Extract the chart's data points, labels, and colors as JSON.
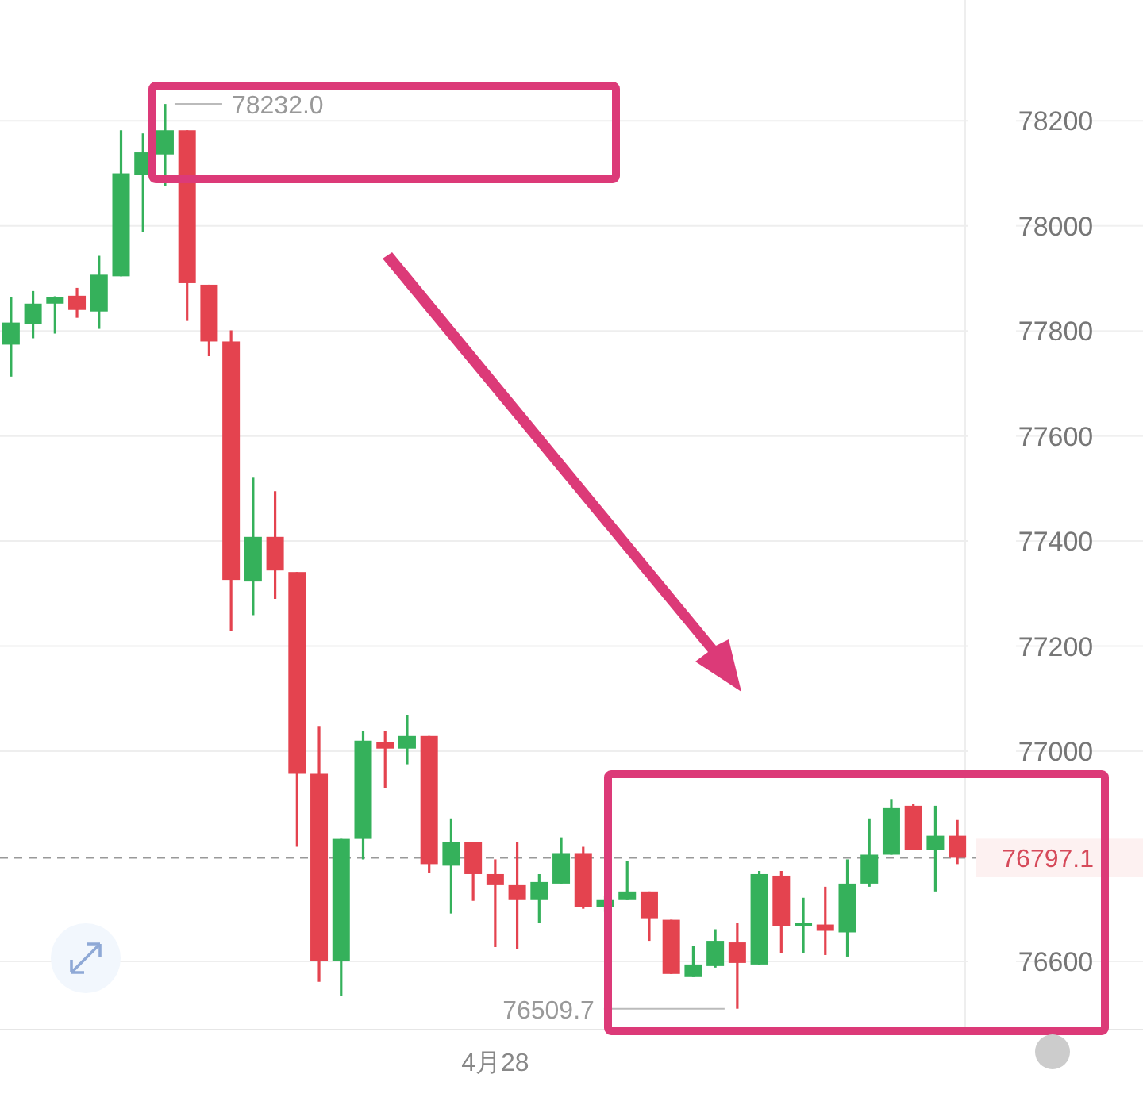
{
  "chart_data": {
    "type": "candlestick",
    "categories": [
      null,
      null,
      null,
      null,
      null,
      null,
      null,
      null,
      null,
      null,
      null,
      null,
      null,
      null,
      null,
      null,
      null,
      null,
      null,
      null,
      null,
      null,
      "4月28",
      null,
      null,
      null,
      null,
      null,
      null,
      null,
      null,
      null,
      null,
      null,
      null,
      null,
      null,
      null,
      null,
      null,
      null,
      null,
      null,
      null
    ],
    "ohlc": [
      [
        77774,
        77864,
        77713,
        77816
      ],
      [
        77813,
        77876,
        77786,
        77852
      ],
      [
        77852,
        77866,
        77795,
        77864
      ],
      [
        77867,
        77882,
        77825,
        77840
      ],
      [
        77837,
        77943,
        77804,
        77907
      ],
      [
        77904,
        78182,
        77904,
        78100
      ],
      [
        78097,
        78176,
        77988,
        78140
      ],
      [
        78136,
        78232.0,
        78076,
        78182
      ],
      [
        78182,
        78182,
        77819,
        77891
      ],
      [
        77888,
        77888,
        77752,
        77780
      ],
      [
        77780,
        77801,
        77229,
        77326
      ],
      [
        77323,
        77522,
        77259,
        77408
      ],
      [
        77408,
        77495,
        77290,
        77344
      ],
      [
        77341,
        77341,
        76818,
        76957
      ],
      [
        76957,
        77048,
        76561,
        76600
      ],
      [
        76600,
        76833,
        76534,
        76833
      ],
      [
        76833,
        77039,
        76794,
        77020
      ],
      [
        77017,
        77039,
        76930,
        77005
      ],
      [
        77005,
        77069,
        76975,
        77029
      ],
      [
        77029,
        77029,
        76769,
        76785
      ],
      [
        76782,
        76872,
        76691,
        76827
      ],
      [
        76827,
        76827,
        76715,
        76766
      ],
      [
        76766,
        76794,
        76627,
        76745
      ],
      [
        76745,
        76827,
        76624,
        76718
      ],
      [
        76718,
        76766,
        76673,
        76751
      ],
      [
        76748,
        76836,
        76748,
        76806
      ],
      [
        76806,
        76818,
        76700,
        76703
      ],
      [
        76703,
        76724,
        76694,
        76718
      ],
      [
        76718,
        76791,
        76718,
        76733
      ],
      [
        76733,
        76733,
        76639,
        76682
      ],
      [
        76679,
        76679,
        76576,
        76576
      ],
      [
        76570,
        76630,
        76570,
        76594
      ],
      [
        76591,
        76661,
        76588,
        76639
      ],
      [
        76636,
        76673,
        76509.7,
        76597
      ],
      [
        76594,
        76772,
        76594,
        76766
      ],
      [
        76763,
        76772,
        76615,
        76667
      ],
      [
        76667,
        76721,
        76615,
        76673
      ],
      [
        76670,
        76742,
        76612,
        76658
      ],
      [
        76655,
        76794,
        76609,
        76748
      ],
      [
        76748,
        76872,
        76742,
        76803
      ],
      [
        76803,
        76909,
        76803,
        76893
      ],
      [
        76896,
        76899,
        76812,
        76812
      ],
      [
        76812,
        76896,
        76733,
        76839
      ],
      [
        76839,
        76869,
        76785,
        76797.1
      ]
    ],
    "colors": [
      "#35b15b",
      "#35b15b",
      "#35b15b",
      "#e4434f",
      "#35b15b",
      "#35b15b",
      "#35b15b",
      "#35b15b",
      "#e4434f",
      "#e4434f",
      "#e4434f",
      "#35b15b",
      "#e4434f",
      "#e4434f",
      "#e4434f",
      "#35b15b",
      "#35b15b",
      "#e4434f",
      "#35b15b",
      "#e4434f",
      "#35b15b",
      "#e4434f",
      "#e4434f",
      "#e4434f",
      "#35b15b",
      "#35b15b",
      "#e4434f",
      "#35b15b",
      "#35b15b",
      "#e4434f",
      "#e4434f",
      "#35b15b",
      "#35b15b",
      "#e4434f",
      "#35b15b",
      "#e4434f",
      "#35b15b",
      "#e4434f",
      "#35b15b",
      "#35b15b",
      "#35b15b",
      "#e4434f",
      "#35b15b",
      "#e4434f"
    ],
    "ylim": [
      76470,
      78430
    ],
    "yticks": [
      76600,
      77000,
      77200,
      77400,
      77600,
      77800,
      78000,
      78200
    ],
    "grid": "y",
    "ref_lines": [
      {
        "axis": "y",
        "value": 76797.1,
        "label": "76797.1",
        "color": "#999999",
        "line_style": "dashed"
      }
    ],
    "annotations": [
      "78232.0",
      "76509.7"
    ]
  }
}
